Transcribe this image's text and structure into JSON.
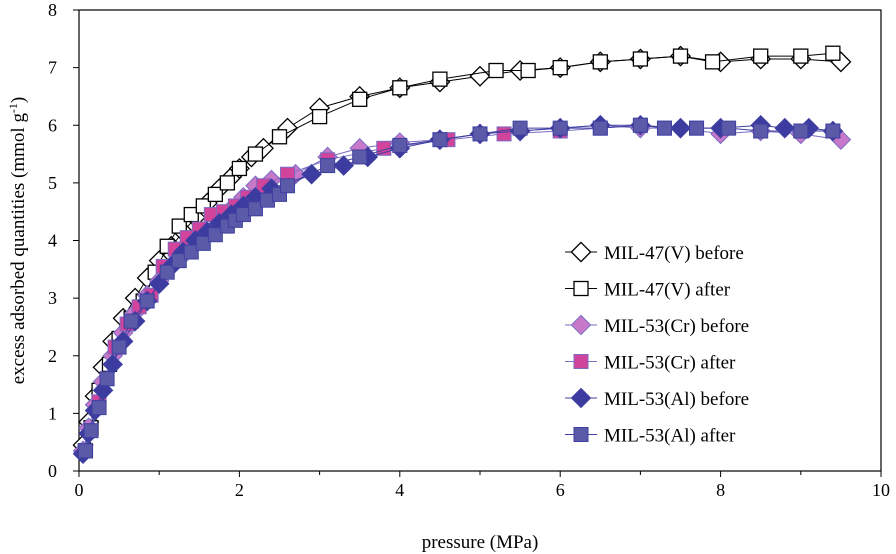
{
  "chart_data": {
    "type": "scatter",
    "xlabel": "pressure (MPa)",
    "ylabel_prefix": "excess adsorbed quantities (mmol g",
    "ylabel_sup": "-1",
    "ylabel_suffix": ")",
    "xlim": [
      0,
      10
    ],
    "ylim": [
      0,
      8
    ],
    "xticks": [
      0,
      2,
      4,
      6,
      8,
      10
    ],
    "yticks": [
      0,
      1,
      2,
      3,
      4,
      5,
      6,
      7,
      8
    ],
    "legend_position": "right",
    "series": [
      {
        "name": "MIL-47(V) before",
        "marker": "diamond-open",
        "color": "#000000",
        "fill": "#ffffff",
        "x": [
          0.05,
          0.12,
          0.2,
          0.3,
          0.42,
          0.55,
          0.7,
          0.85,
          1.0,
          1.15,
          1.3,
          1.45,
          1.6,
          1.75,
          1.9,
          2.0,
          2.15,
          2.3,
          2.6,
          3.0,
          3.5,
          4.0,
          4.5,
          5.0,
          5.5,
          6.0,
          6.5,
          7.0,
          7.5,
          8.0,
          8.5,
          9.0,
          9.5
        ],
        "y": [
          0.45,
          0.85,
          1.3,
          1.8,
          2.25,
          2.65,
          3.0,
          3.35,
          3.65,
          3.9,
          4.15,
          4.4,
          4.65,
          4.9,
          5.1,
          5.25,
          5.45,
          5.6,
          5.95,
          6.3,
          6.5,
          6.65,
          6.75,
          6.85,
          6.95,
          7.0,
          7.1,
          7.15,
          7.2,
          7.1,
          7.15,
          7.15,
          7.1
        ]
      },
      {
        "name": "MIL-47(V) after",
        "marker": "square-open",
        "color": "#000000",
        "fill": "#ffffff",
        "x": [
          0.08,
          0.15,
          0.25,
          0.38,
          0.5,
          0.65,
          0.8,
          0.95,
          1.1,
          1.25,
          1.4,
          1.55,
          1.7,
          1.85,
          2.0,
          2.2,
          2.5,
          3.0,
          3.5,
          4.0,
          4.5,
          5.2,
          5.6,
          6.0,
          6.5,
          7.0,
          7.5,
          7.9,
          8.5,
          9.0,
          9.4
        ],
        "y": [
          0.35,
          0.75,
          1.4,
          1.85,
          2.3,
          2.65,
          2.95,
          3.45,
          3.9,
          4.25,
          4.45,
          4.6,
          4.8,
          5.0,
          5.25,
          5.5,
          5.8,
          6.15,
          6.45,
          6.65,
          6.8,
          6.95,
          6.95,
          7.0,
          7.1,
          7.15,
          7.2,
          7.1,
          7.2,
          7.2,
          7.25
        ]
      },
      {
        "name": "MIL-53(Cr) before",
        "marker": "diamond",
        "color": "#7b6cc4",
        "fill": "#c878c8",
        "x": [
          0.05,
          0.12,
          0.2,
          0.3,
          0.42,
          0.55,
          0.7,
          0.85,
          1.0,
          1.15,
          1.3,
          1.45,
          1.6,
          1.75,
          1.9,
          2.05,
          2.2,
          2.4,
          2.7,
          3.1,
          3.5,
          4.0,
          4.5,
          5.0,
          5.5,
          6.0,
          6.5,
          7.0,
          7.5,
          8.0,
          8.5,
          9.0,
          9.5
        ],
        "y": [
          0.35,
          0.75,
          1.15,
          1.55,
          2.0,
          2.4,
          2.75,
          3.05,
          3.3,
          3.55,
          3.75,
          3.95,
          4.15,
          4.4,
          4.55,
          4.75,
          4.95,
          5.05,
          5.15,
          5.45,
          5.6,
          5.7,
          5.75,
          5.85,
          5.9,
          5.95,
          6.0,
          5.95,
          5.95,
          5.85,
          5.9,
          5.85,
          5.75
        ]
      },
      {
        "name": "MIL-53(Cr) after",
        "marker": "square",
        "color": "#7b6cc4",
        "fill": "#d0449c",
        "x": [
          0.08,
          0.25,
          0.45,
          0.6,
          0.75,
          0.9,
          1.05,
          1.2,
          1.35,
          1.5,
          1.65,
          1.8,
          1.95,
          2.1,
          2.3,
          2.6,
          3.1,
          3.8,
          4.6,
          5.3,
          6.0,
          6.5,
          7.0,
          7.3,
          7.7
        ],
        "y": [
          0.35,
          1.2,
          2.15,
          2.55,
          2.85,
          3.05,
          3.55,
          3.85,
          4.05,
          4.2,
          4.45,
          4.5,
          4.6,
          4.75,
          4.95,
          5.15,
          5.4,
          5.6,
          5.75,
          5.85,
          5.9,
          5.95,
          6.0,
          5.95,
          5.95
        ]
      },
      {
        "name": "MIL-53(Al) before",
        "marker": "diamond",
        "color": "#3f3fa0",
        "fill": "#3c3ca0",
        "x": [
          0.05,
          0.12,
          0.2,
          0.3,
          0.42,
          0.55,
          0.7,
          0.85,
          1.0,
          1.15,
          1.3,
          1.45,
          1.6,
          1.75,
          1.9,
          2.05,
          2.2,
          2.4,
          2.9,
          3.3,
          3.6,
          4.0,
          4.5,
          5.0,
          5.5,
          6.0,
          6.5,
          7.0,
          7.5,
          8.0,
          8.5,
          8.8,
          9.1,
          9.4
        ],
        "y": [
          0.3,
          0.65,
          1.05,
          1.4,
          1.85,
          2.25,
          2.6,
          2.95,
          3.25,
          3.55,
          3.8,
          4.0,
          4.15,
          4.3,
          4.45,
          4.6,
          4.75,
          4.9,
          5.15,
          5.3,
          5.45,
          5.6,
          5.75,
          5.85,
          5.9,
          5.95,
          6.0,
          6.0,
          5.95,
          5.95,
          6.0,
          5.95,
          5.95,
          5.9
        ]
      },
      {
        "name": "MIL-53(Al) after",
        "marker": "square",
        "color": "#3f3fa0",
        "fill": "#5a5aa8",
        "x": [
          0.08,
          0.15,
          0.25,
          0.35,
          0.5,
          0.65,
          0.85,
          1.1,
          1.25,
          1.4,
          1.55,
          1.7,
          1.85,
          1.95,
          2.05,
          2.2,
          2.35,
          2.5,
          2.6,
          3.1,
          3.5,
          4.0,
          4.5,
          5.0,
          5.5,
          6.0,
          6.5,
          7.0,
          7.3,
          7.7,
          8.1,
          8.5,
          9.0,
          9.4
        ],
        "y": [
          0.35,
          0.7,
          1.1,
          1.6,
          2.15,
          2.6,
          2.95,
          3.45,
          3.65,
          3.8,
          3.95,
          4.1,
          4.25,
          4.35,
          4.45,
          4.55,
          4.7,
          4.8,
          4.95,
          5.3,
          5.45,
          5.65,
          5.75,
          5.85,
          5.95,
          5.95,
          5.95,
          6.0,
          5.95,
          5.95,
          5.95,
          5.9,
          5.9,
          5.9
        ]
      }
    ]
  }
}
